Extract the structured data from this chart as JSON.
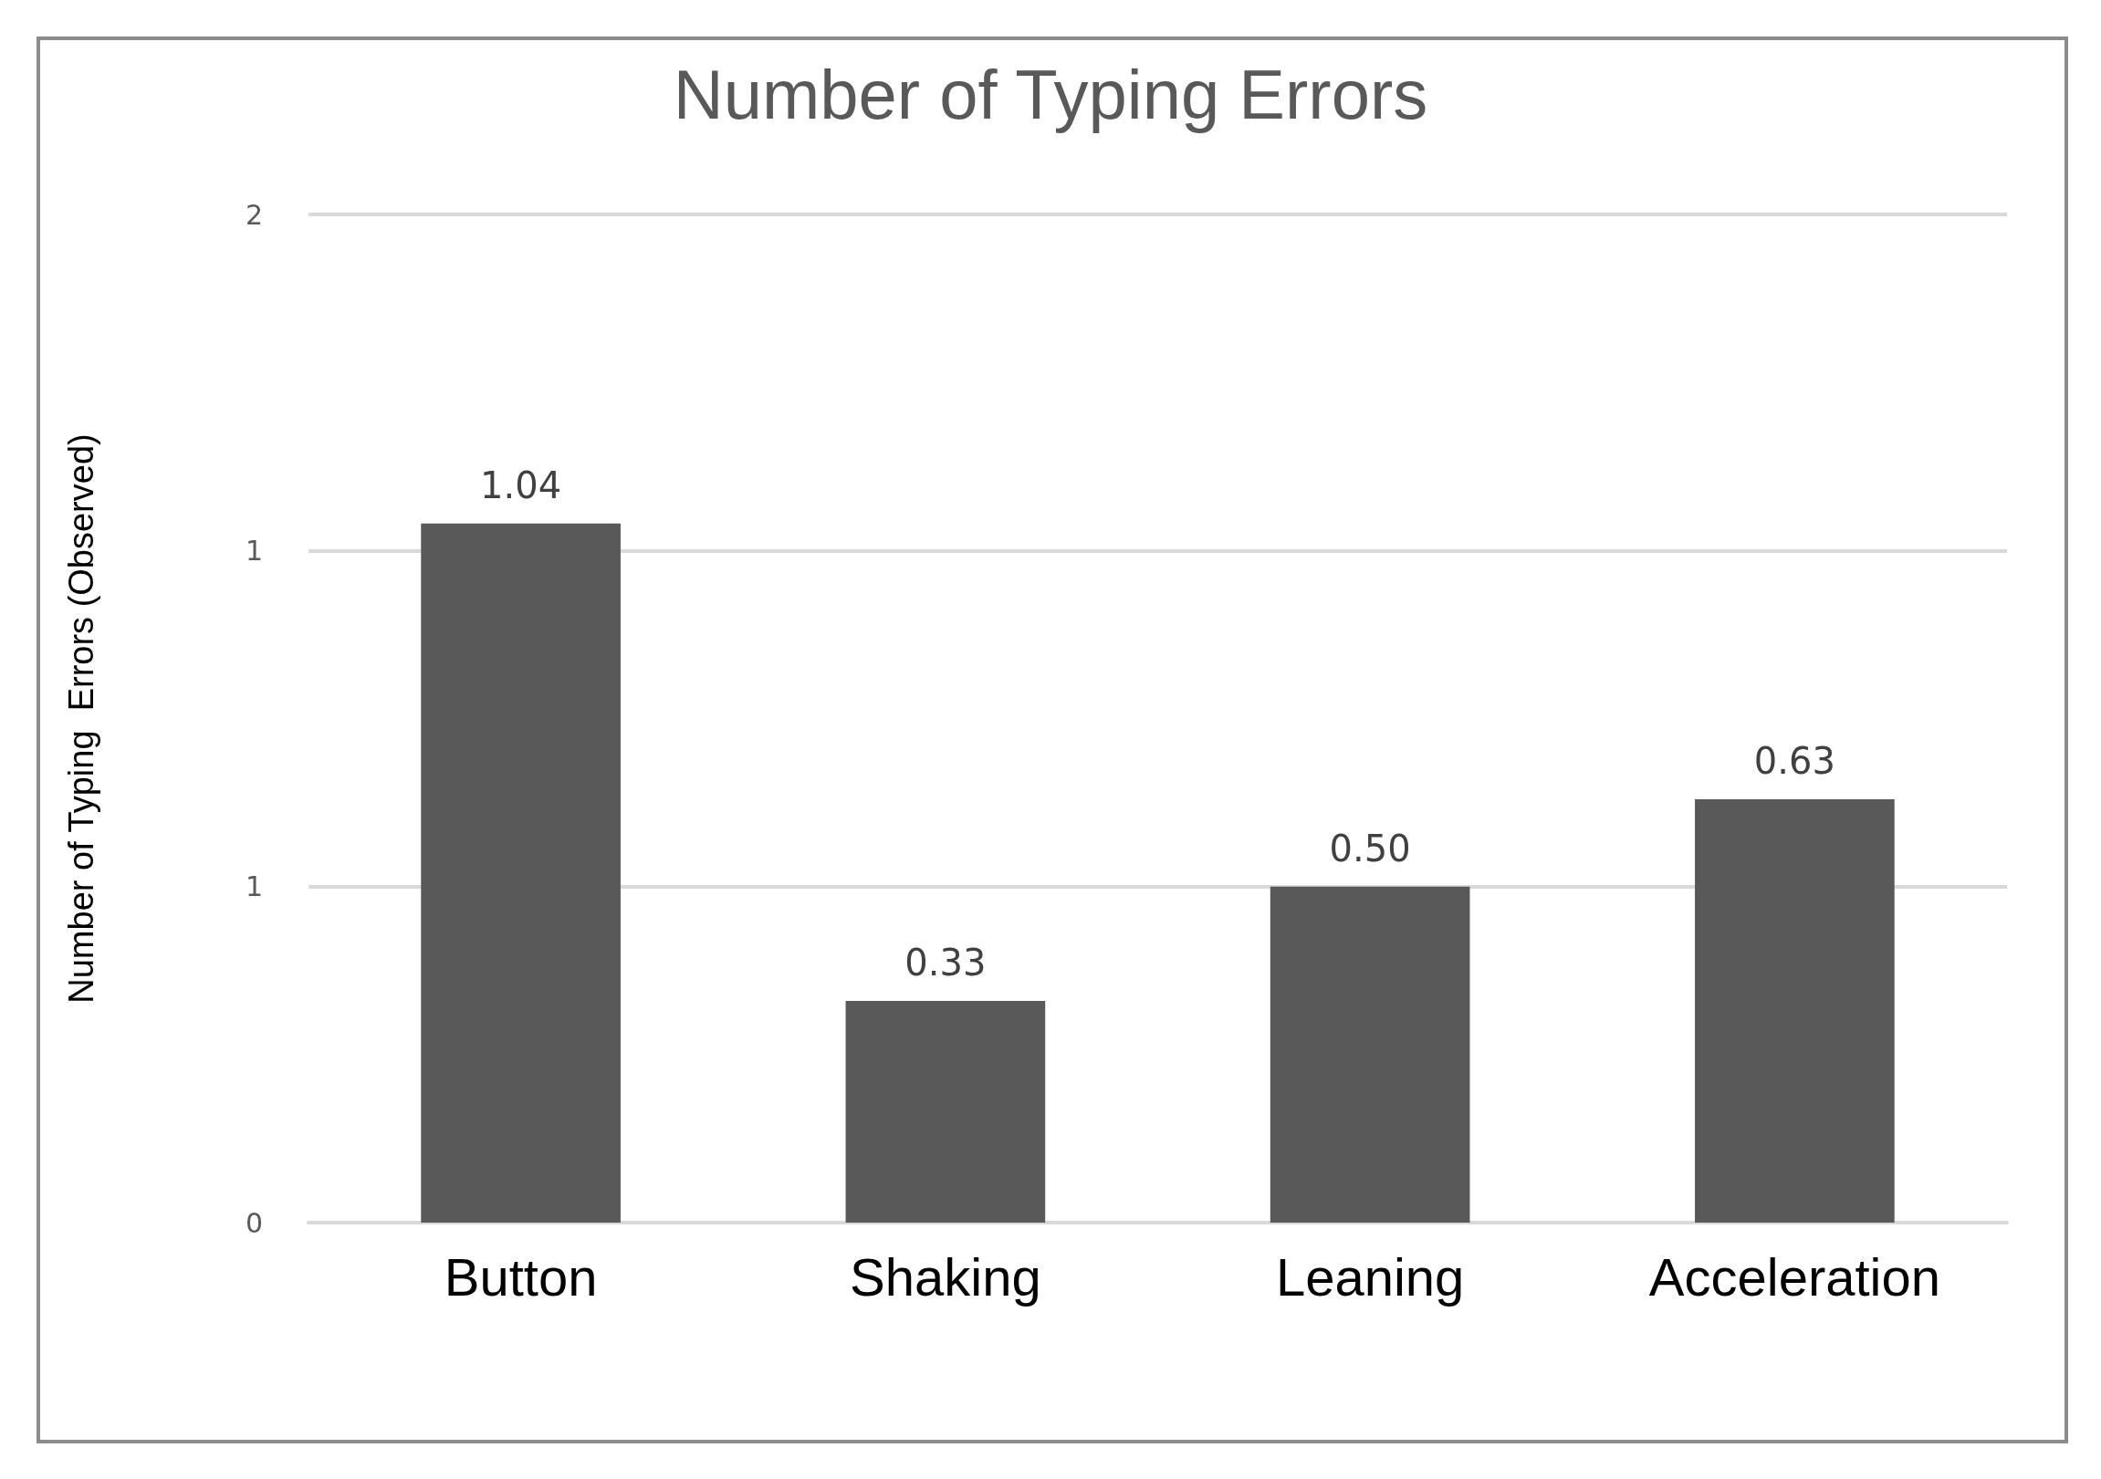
{
  "chart_data": {
    "type": "bar",
    "title": "Number of Typing Errors",
    "ylabel": "Number of Typing  Errors (Observed)",
    "categories": [
      "Button",
      "Shaking",
      "Leaning",
      "Acceleration"
    ],
    "values": [
      1.04,
      0.33,
      0.5,
      0.63
    ],
    "value_labels": [
      "1.04",
      "0.33",
      "0.50",
      "0.63"
    ],
    "color": "#595959",
    "ylim": [
      0,
      1.5
    ],
    "yticks": [
      {
        "value": 0,
        "label": "0"
      },
      {
        "value": 0.5,
        "label": "1"
      },
      {
        "value": 1,
        "label": "1"
      },
      {
        "value": 1.5,
        "label": "2"
      }
    ],
    "grid": "y"
  }
}
